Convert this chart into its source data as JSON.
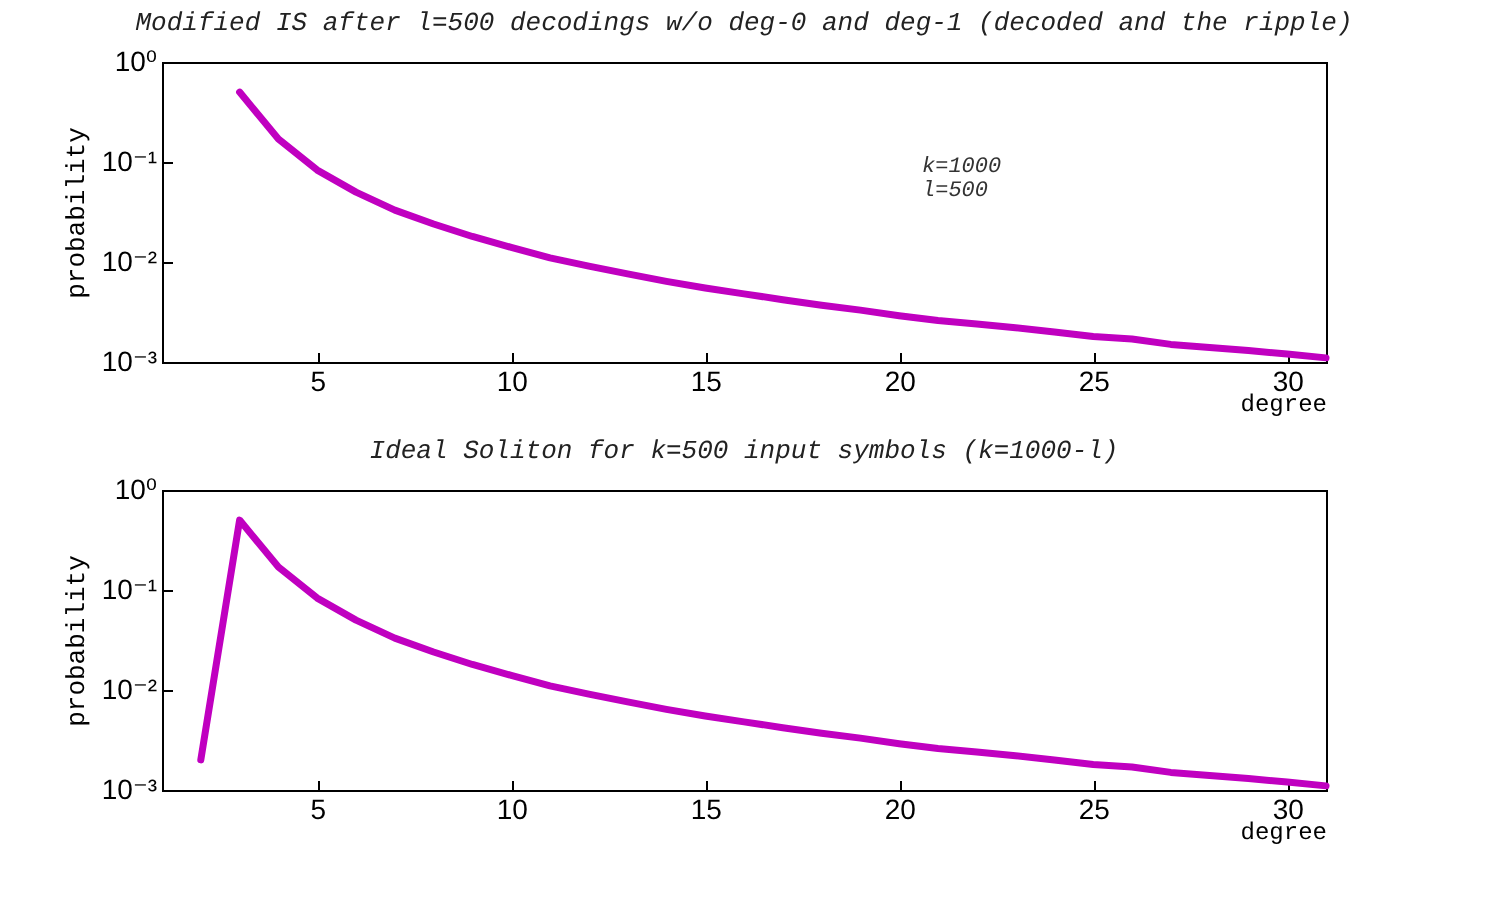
{
  "chart_data": [
    {
      "type": "line",
      "title": "Modified IS after l=500 decodings w/o deg-0 and deg-1 (decoded and the ripple)",
      "xlabel": "degree",
      "ylabel": "probability",
      "annotations": [
        "k=1000",
        "l=500"
      ],
      "x": [
        3,
        4,
        5,
        6,
        7,
        8,
        9,
        10,
        11,
        12,
        13,
        14,
        15,
        16,
        17,
        18,
        19,
        20,
        21,
        22,
        23,
        24,
        25,
        26,
        27,
        28,
        29,
        30,
        31
      ],
      "series": [
        {
          "color": "#c000c0",
          "values": [
            0.5,
            0.17,
            0.083,
            0.05,
            0.033,
            0.024,
            0.018,
            0.014,
            0.011,
            0.0091,
            0.0076,
            0.0064,
            0.0055,
            0.0048,
            0.0042,
            0.0037,
            0.0033,
            0.0029,
            0.0026,
            0.0024,
            0.0022,
            0.002,
            0.0018,
            0.0017,
            0.0015,
            0.0014,
            0.0013,
            0.0012,
            0.0011
          ]
        }
      ],
      "log": "y",
      "xlim": [
        1,
        31
      ],
      "xticks": [
        5,
        10,
        15,
        20,
        25,
        30
      ],
      "ylim": [
        0.001,
        1
      ],
      "yticks": [
        {
          "value": 0.001,
          "label": "10⁻³"
        },
        {
          "value": 0.01,
          "label": "10⁻²"
        },
        {
          "value": 0.1,
          "label": "10⁻¹"
        },
        {
          "value": 1,
          "label": "10⁰"
        }
      ],
      "grid": false,
      "marker": "none",
      "line_style": "solid"
    },
    {
      "type": "line",
      "title": "Ideal Soliton for k=500 input symbols (k=1000-l)",
      "xlabel": "degree",
      "ylabel": "probability",
      "x": [
        2,
        3,
        4,
        5,
        6,
        7,
        8,
        9,
        10,
        11,
        12,
        13,
        14,
        15,
        16,
        17,
        18,
        19,
        20,
        21,
        22,
        23,
        24,
        25,
        26,
        27,
        28,
        29,
        30,
        31
      ],
      "series": [
        {
          "color": "#c000c0",
          "values": [
            0.002,
            0.5,
            0.17,
            0.083,
            0.05,
            0.033,
            0.024,
            0.018,
            0.014,
            0.011,
            0.0091,
            0.0076,
            0.0064,
            0.0055,
            0.0048,
            0.0042,
            0.0037,
            0.0033,
            0.0029,
            0.0026,
            0.0024,
            0.0022,
            0.002,
            0.0018,
            0.0017,
            0.0015,
            0.0014,
            0.0013,
            0.0012,
            0.0011
          ]
        }
      ],
      "log": "y",
      "xlim": [
        1,
        31
      ],
      "xticks": [
        5,
        10,
        15,
        20,
        25,
        30
      ],
      "ylim": [
        0.001,
        1
      ],
      "yticks": [
        {
          "value": 0.001,
          "label": "10⁻³"
        },
        {
          "value": 0.01,
          "label": "10⁻²"
        },
        {
          "value": 0.1,
          "label": "10⁻¹"
        },
        {
          "value": 1,
          "label": "10⁰"
        }
      ],
      "grid": false,
      "marker": "none",
      "line_style": "solid"
    }
  ]
}
